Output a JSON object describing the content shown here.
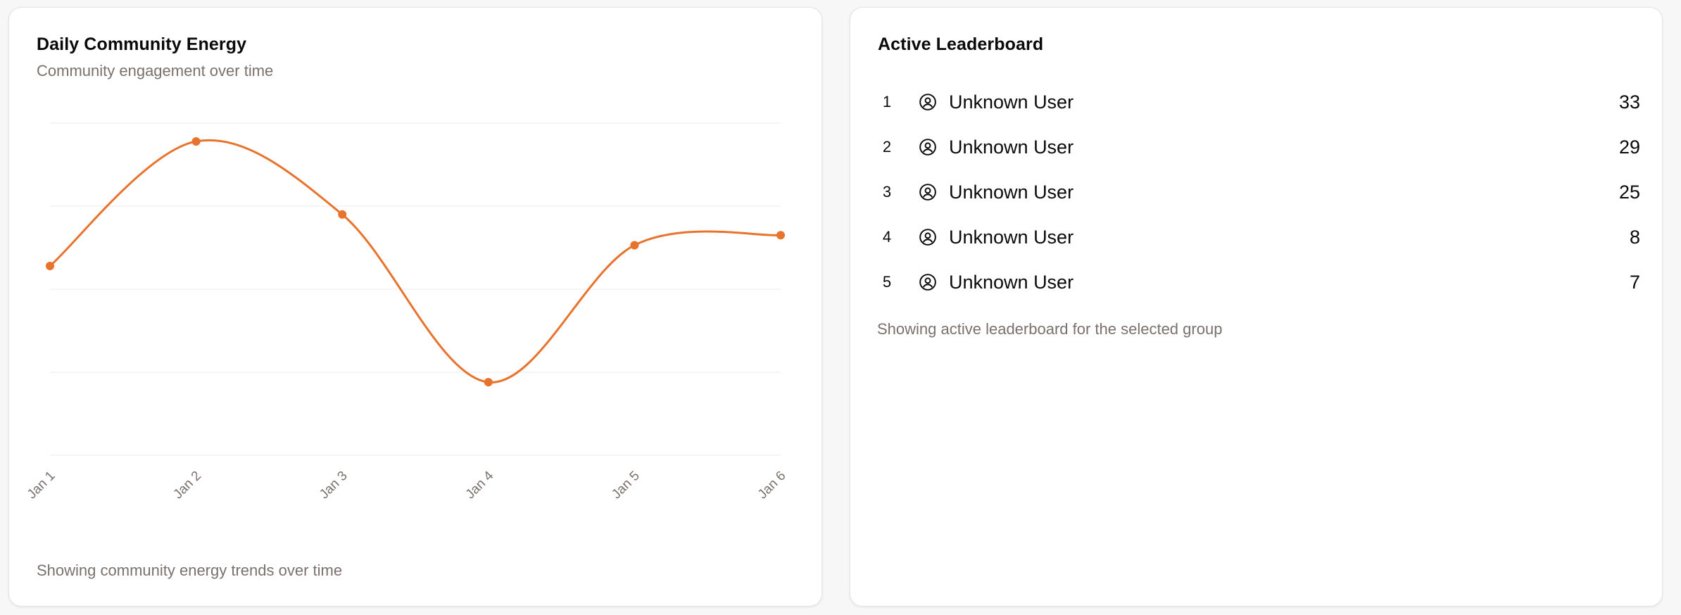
{
  "energy_card": {
    "title": "Daily Community Energy",
    "subtitle": "Community engagement over time",
    "footer": "Showing community energy trends over time"
  },
  "chart_data": {
    "type": "line",
    "x": [
      "Jan 1",
      "Jan 2",
      "Jan 3",
      "Jan 4",
      "Jan 5",
      "Jan 6"
    ],
    "values": [
      22.8,
      37.8,
      29.0,
      8.8,
      25.3,
      26.5
    ],
    "ylim": [
      0,
      40
    ],
    "grid": true,
    "curve": "smooth",
    "color": "#e8732c"
  },
  "leaderboard_card": {
    "title": "Active Leaderboard",
    "footer": "Showing active leaderboard for the selected group",
    "items": [
      {
        "rank": "1",
        "icon": "user-circle-icon",
        "name": "Unknown User",
        "score": "33"
      },
      {
        "rank": "2",
        "icon": "user-circle-icon",
        "name": "Unknown User",
        "score": "29"
      },
      {
        "rank": "3",
        "icon": "user-circle-icon",
        "name": "Unknown User",
        "score": "25"
      },
      {
        "rank": "4",
        "icon": "user-circle-icon",
        "name": "Unknown User",
        "score": "8"
      },
      {
        "rank": "5",
        "icon": "user-circle-icon",
        "name": "Unknown User",
        "score": "7"
      }
    ]
  }
}
